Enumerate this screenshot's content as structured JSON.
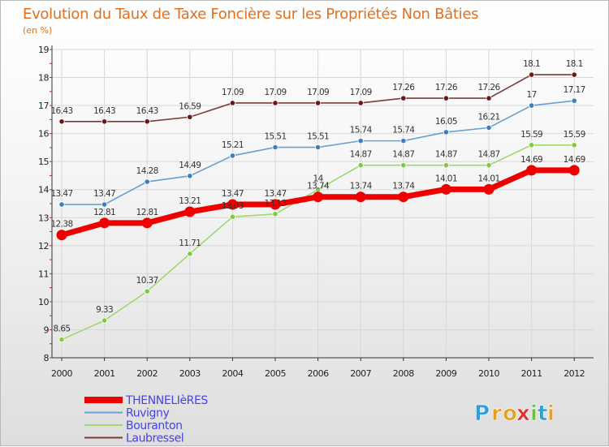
{
  "chart_data": {
    "type": "line",
    "title": "Evolution du Taux de Taxe Foncière sur les Propriétés Non Bâties",
    "ylabel": "(en %)",
    "xlabel": "",
    "ylim": [
      8,
      19
    ],
    "yticks": [
      8,
      9,
      10,
      11,
      12,
      13,
      14,
      15,
      16,
      17,
      18,
      19
    ],
    "categories": [
      "2000",
      "2001",
      "2002",
      "2003",
      "2004",
      "2005",
      "2006",
      "2007",
      "2008",
      "2009",
      "2010",
      "2011",
      "2012"
    ],
    "series": [
      {
        "name": "THENNELIèRES",
        "color": "#ee0000",
        "legend_color": "#4444ee",
        "values": [
          12.38,
          12.81,
          12.81,
          13.21,
          13.47,
          13.47,
          13.74,
          13.74,
          13.74,
          14.01,
          14.01,
          14.69,
          14.69
        ],
        "labels": [
          "12.38",
          "12.81",
          "12.81",
          "13.21",
          "13.47",
          "13.47",
          "13.74",
          "13.74",
          "13.74",
          "14.01",
          "14.01",
          "14.69",
          "14.69"
        ],
        "emphasis": true
      },
      {
        "name": "Ruvigny",
        "color": "#6a9fcf",
        "marker": "#3c7fc0",
        "legend_color": "#4444ee",
        "values": [
          13.47,
          13.47,
          14.28,
          14.49,
          15.21,
          15.51,
          15.51,
          15.74,
          15.74,
          16.05,
          16.21,
          17,
          17.17
        ],
        "labels": [
          "13.47",
          "13.47",
          "14.28",
          "14.49",
          "15.21",
          "15.51",
          "15.51",
          "15.74",
          "15.74",
          "16.05",
          "16.21",
          "17",
          "17.17"
        ]
      },
      {
        "name": "Bouranton",
        "color": "#9ed86e",
        "marker": "#7ccc3c",
        "legend_color": "#4444ee",
        "values": [
          8.65,
          9.33,
          10.37,
          11.71,
          13.03,
          13.13,
          14,
          14.87,
          14.87,
          14.87,
          14.87,
          15.59,
          15.59
        ],
        "labels": [
          "8.65",
          "9.33",
          "10.37",
          "11.71",
          "13.03",
          "13.13",
          "14",
          "14.87",
          "14.87",
          "14.87",
          "14.87",
          "15.59",
          "15.59"
        ]
      },
      {
        "name": "Laubressel",
        "color": "#7a3a3a",
        "marker": "#6a1818",
        "legend_color": "#4444ee",
        "values": [
          16.43,
          16.43,
          16.43,
          16.59,
          17.09,
          17.09,
          17.09,
          17.09,
          17.26,
          17.26,
          17.26,
          18.1,
          18.1
        ],
        "labels": [
          "16.43",
          "16.43",
          "16.43",
          "16.59",
          "17.09",
          "17.09",
          "17.09",
          "17.09",
          "17.26",
          "17.26",
          "17.26",
          "18.1",
          "18.1"
        ]
      }
    ],
    "legend_position": "bottom-left"
  },
  "brand": {
    "letters": [
      "P",
      "r",
      "o",
      "x",
      "i",
      "t",
      "i"
    ],
    "colors": [
      "#2f9fd8",
      "#e8a020",
      "#e8a020",
      "#e03030",
      "#6cbf3a",
      "#2f9fd8",
      "#e8a020"
    ]
  }
}
